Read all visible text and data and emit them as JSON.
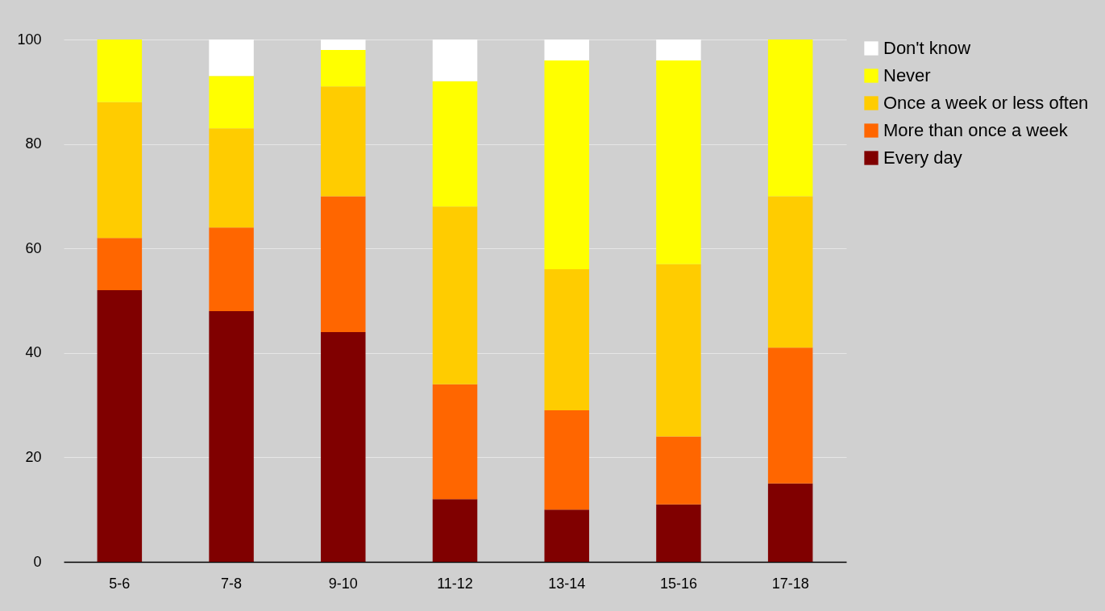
{
  "chart_data": {
    "type": "bar",
    "stacked": true,
    "categories": [
      "5-6",
      "7-8",
      "9-10",
      "11-12",
      "13-14",
      "15-16",
      "17-18"
    ],
    "series": [
      {
        "name": "Every day",
        "color": "#800000",
        "values": [
          52,
          48,
          44,
          12,
          10,
          11,
          15
        ]
      },
      {
        "name": "More than once a week",
        "color": "#ff6600",
        "values": [
          10,
          16,
          26,
          22,
          19,
          13,
          26
        ]
      },
      {
        "name": "Once a week or less often",
        "color": "#ffcc00",
        "values": [
          26,
          19,
          21,
          34,
          27,
          33,
          29
        ]
      },
      {
        "name": "Never",
        "color": "#ffff00",
        "values": [
          12,
          10,
          7,
          24,
          40,
          39,
          30
        ]
      },
      {
        "name": "Don't know",
        "color": "#ffffff",
        "values": [
          0,
          7,
          2,
          8,
          4,
          4,
          0
        ]
      }
    ],
    "ylim": [
      0,
      100
    ],
    "yticks": [
      0,
      20,
      40,
      60,
      80,
      100
    ],
    "grid": "y",
    "legend": "right"
  }
}
